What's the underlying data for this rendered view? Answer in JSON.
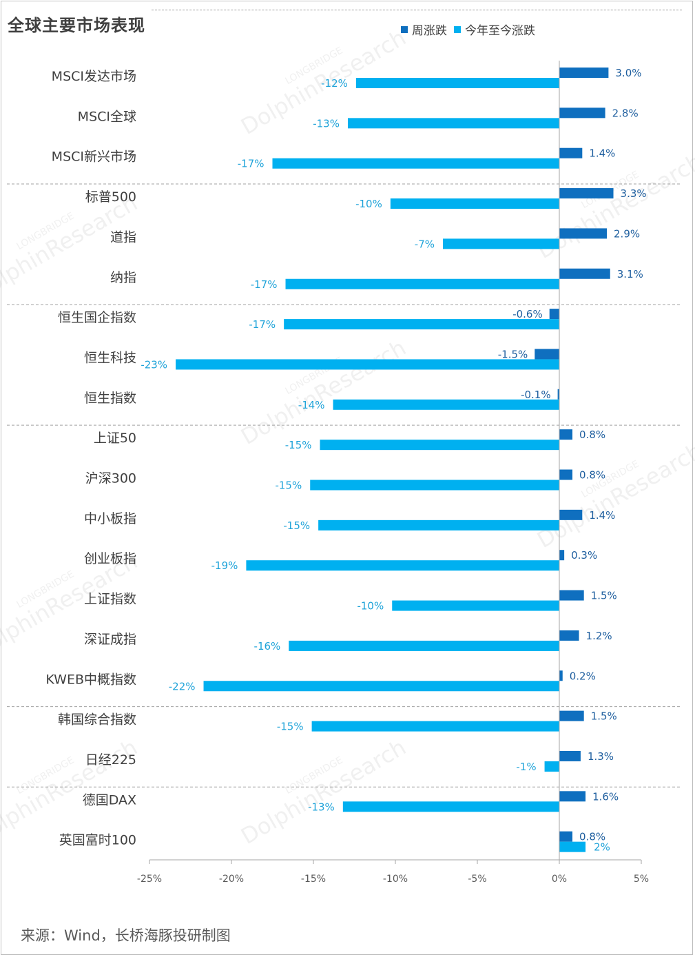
{
  "title": "全球主要市场表现",
  "source": "来源：Wind，长桥海豚投研制图",
  "watermark": {
    "line1": "LONGBRIDGE",
    "line2": "DolphinResearch"
  },
  "colors": {
    "weekly": "#0f6fbf",
    "ytd": "#00b0f0",
    "axis": "#a6a6a6",
    "divider": "#a0a0a0",
    "label": "#404040"
  },
  "chart_data": {
    "type": "bar",
    "orientation": "horizontal",
    "title": "全球主要市场表现",
    "categories": [
      "MSCI发达市场",
      "MSCI全球",
      "MSCI新兴市场",
      "标普500",
      "道指",
      "纳指",
      "恒生国企指数",
      "恒生科技",
      "恒生指数",
      "上证50",
      "沪深300",
      "中小板指",
      "创业板指",
      "上证指数",
      "深证成指",
      "KWEB中概指数",
      "韩国综合指数",
      "日经225",
      "德国DAX",
      "英国富时100"
    ],
    "series": [
      {
        "name": "周涨跌",
        "values": [
          3.0,
          2.8,
          1.4,
          3.3,
          2.9,
          3.1,
          -0.6,
          -1.5,
          -0.1,
          0.8,
          0.8,
          1.4,
          0.3,
          1.5,
          1.2,
          0.2,
          1.5,
          1.3,
          1.6,
          0.8
        ],
        "labels": [
          "3.0%",
          "2.8%",
          "1.4%",
          "3.3%",
          "2.9%",
          "3.1%",
          "-0.6%",
          "-1.5%",
          "-0.1%",
          "0.8%",
          "0.8%",
          "1.4%",
          "0.3%",
          "1.5%",
          "1.2%",
          "0.2%",
          "1.5%",
          "1.3%",
          "1.6%",
          "0.8%"
        ]
      },
      {
        "name": "今年至今涨跌",
        "values": [
          -12.4,
          -12.9,
          -17.5,
          -10.3,
          -7.1,
          -16.7,
          -16.8,
          -23.4,
          -13.8,
          -14.6,
          -15.2,
          -14.7,
          -19.1,
          -10.2,
          -16.5,
          -21.7,
          -15.1,
          -0.9,
          -13.2,
          1.6
        ],
        "labels": [
          "-12%",
          "-13%",
          "-17%",
          "-10%",
          "-7%",
          "-17%",
          "-17%",
          "-23%",
          "-14%",
          "-15%",
          "-15%",
          "-15%",
          "-19%",
          "-10%",
          "-16%",
          "-22%",
          "-15%",
          "-1%",
          "-13%",
          "2%"
        ]
      }
    ],
    "xlim": [
      -25,
      5
    ],
    "xticks": [
      -25,
      -20,
      -15,
      -10,
      -5,
      0,
      5
    ],
    "xtick_labels": [
      "-25%",
      "-20%",
      "-15%",
      "-10%",
      "-5%",
      "0%",
      "5%"
    ],
    "group_dividers_after": [
      2,
      5,
      8,
      15,
      17
    ],
    "legend_position": "top-right",
    "grid": false
  }
}
